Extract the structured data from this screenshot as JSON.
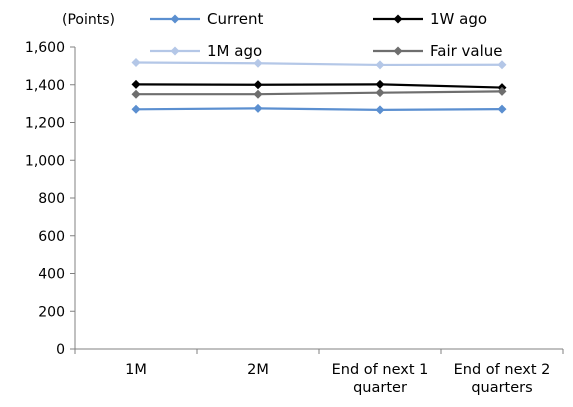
{
  "chart_data": {
    "type": "line",
    "title": "",
    "unit_label": "(Points)",
    "xlabel": "",
    "ylabel": "",
    "categories": [
      [
        "1M"
      ],
      [
        "2M"
      ],
      [
        "End of next 1",
        "quarter"
      ],
      [
        "End of next 2",
        "quarters"
      ]
    ],
    "ylim": [
      0,
      1600
    ],
    "yticks": [
      0,
      200,
      400,
      600,
      800,
      1000,
      1200,
      1400,
      1600
    ],
    "ytick_labels": [
      "0",
      "200",
      "400",
      "600",
      "800",
      "1,000",
      "1,200",
      "1,400",
      "1,600"
    ],
    "grid": false,
    "legend_position": "top",
    "series": [
      {
        "name": "Current",
        "color": "#5B8FD0",
        "values": [
          1270,
          1275,
          1267,
          1271
        ]
      },
      {
        "name": "1W ago",
        "color": "#000000",
        "values": [
          1402,
          1400,
          1402,
          1385
        ]
      },
      {
        "name": "1M ago",
        "color": "#B4C7E7",
        "values": [
          1518,
          1514,
          1505,
          1506
        ]
      },
      {
        "name": "Fair value",
        "color": "#6E6E6E",
        "values": [
          1350,
          1350,
          1358,
          1365
        ]
      }
    ]
  }
}
